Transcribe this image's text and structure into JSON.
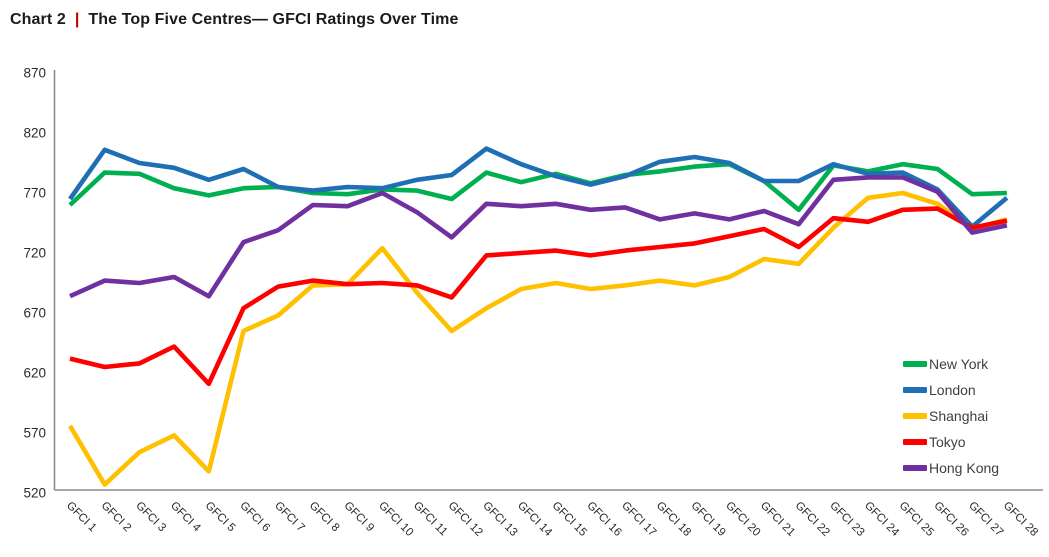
{
  "title": {
    "prefix": "Chart 2",
    "separator": "|",
    "text": "The Top Five Centres— GFCI Ratings Over Time"
  },
  "chart_data": {
    "type": "line",
    "title": "The Top Five Centres— GFCI Ratings Over Time",
    "xlabel": "",
    "ylabel": "",
    "ylim": [
      520,
      870
    ],
    "y_ticks": [
      870,
      820,
      770,
      720,
      670,
      620,
      570,
      520
    ],
    "grid": false,
    "legend_position": "right",
    "categories": [
      "GFCI 1",
      "GFCI 2",
      "GFCI 3",
      "GFCI 4",
      "GFCI 5",
      "GFCI 6",
      "GFCI 7",
      "GFCI 8",
      "GFCI 9",
      "GFCI 10",
      "GFCI 11",
      "GFCI 12",
      "GFCI 13",
      "GFCI 14",
      "GFCI 15",
      "GFCI 16",
      "GFCI 17",
      "GFCI 18",
      "GFCI 19",
      "GFCI 20",
      "GFCI 21",
      "GFCI 22",
      "GFCI 23",
      "GFCI 24",
      "GFCI 25",
      "GFCI 26",
      "GFCI 27",
      "GFCI 28"
    ],
    "series": [
      {
        "name": "New York",
        "color": "#00B050",
        "values": [
          760,
          787,
          786,
          774,
          768,
          774,
          775,
          770,
          769,
          773,
          772,
          765,
          787,
          779,
          786,
          778,
          785,
          788,
          792,
          794,
          780,
          756,
          793,
          788,
          794,
          790,
          769,
          770
        ]
      },
      {
        "name": "London",
        "color": "#1F6FB5",
        "values": [
          765,
          806,
          795,
          791,
          781,
          790,
          775,
          772,
          775,
          774,
          781,
          785,
          807,
          794,
          784,
          777,
          784,
          796,
          800,
          795,
          780,
          780,
          794,
          786,
          787,
          773,
          742,
          766
        ]
      },
      {
        "name": "Shanghai",
        "color": "#FFC000",
        "values": [
          576,
          527,
          554,
          568,
          538,
          655,
          668,
          693,
          694,
          724,
          687,
          655,
          674,
          690,
          695,
          690,
          693,
          697,
          693,
          700,
          715,
          711,
          741,
          766,
          770,
          761,
          740,
          748
        ]
      },
      {
        "name": "Tokyo",
        "color": "#FF0000",
        "values": [
          632,
          625,
          628,
          642,
          611,
          674,
          692,
          697,
          694,
          695,
          693,
          683,
          718,
          720,
          722,
          718,
          722,
          725,
          728,
          734,
          740,
          725,
          749,
          746,
          756,
          757,
          741,
          747
        ]
      },
      {
        "name": "Hong Kong",
        "color": "#7030A0",
        "values": [
          684,
          697,
          695,
          700,
          684,
          729,
          739,
          760,
          759,
          770,
          754,
          733,
          761,
          759,
          761,
          756,
          758,
          748,
          753,
          748,
          755,
          744,
          781,
          783,
          783,
          771,
          737,
          743
        ]
      }
    ]
  }
}
